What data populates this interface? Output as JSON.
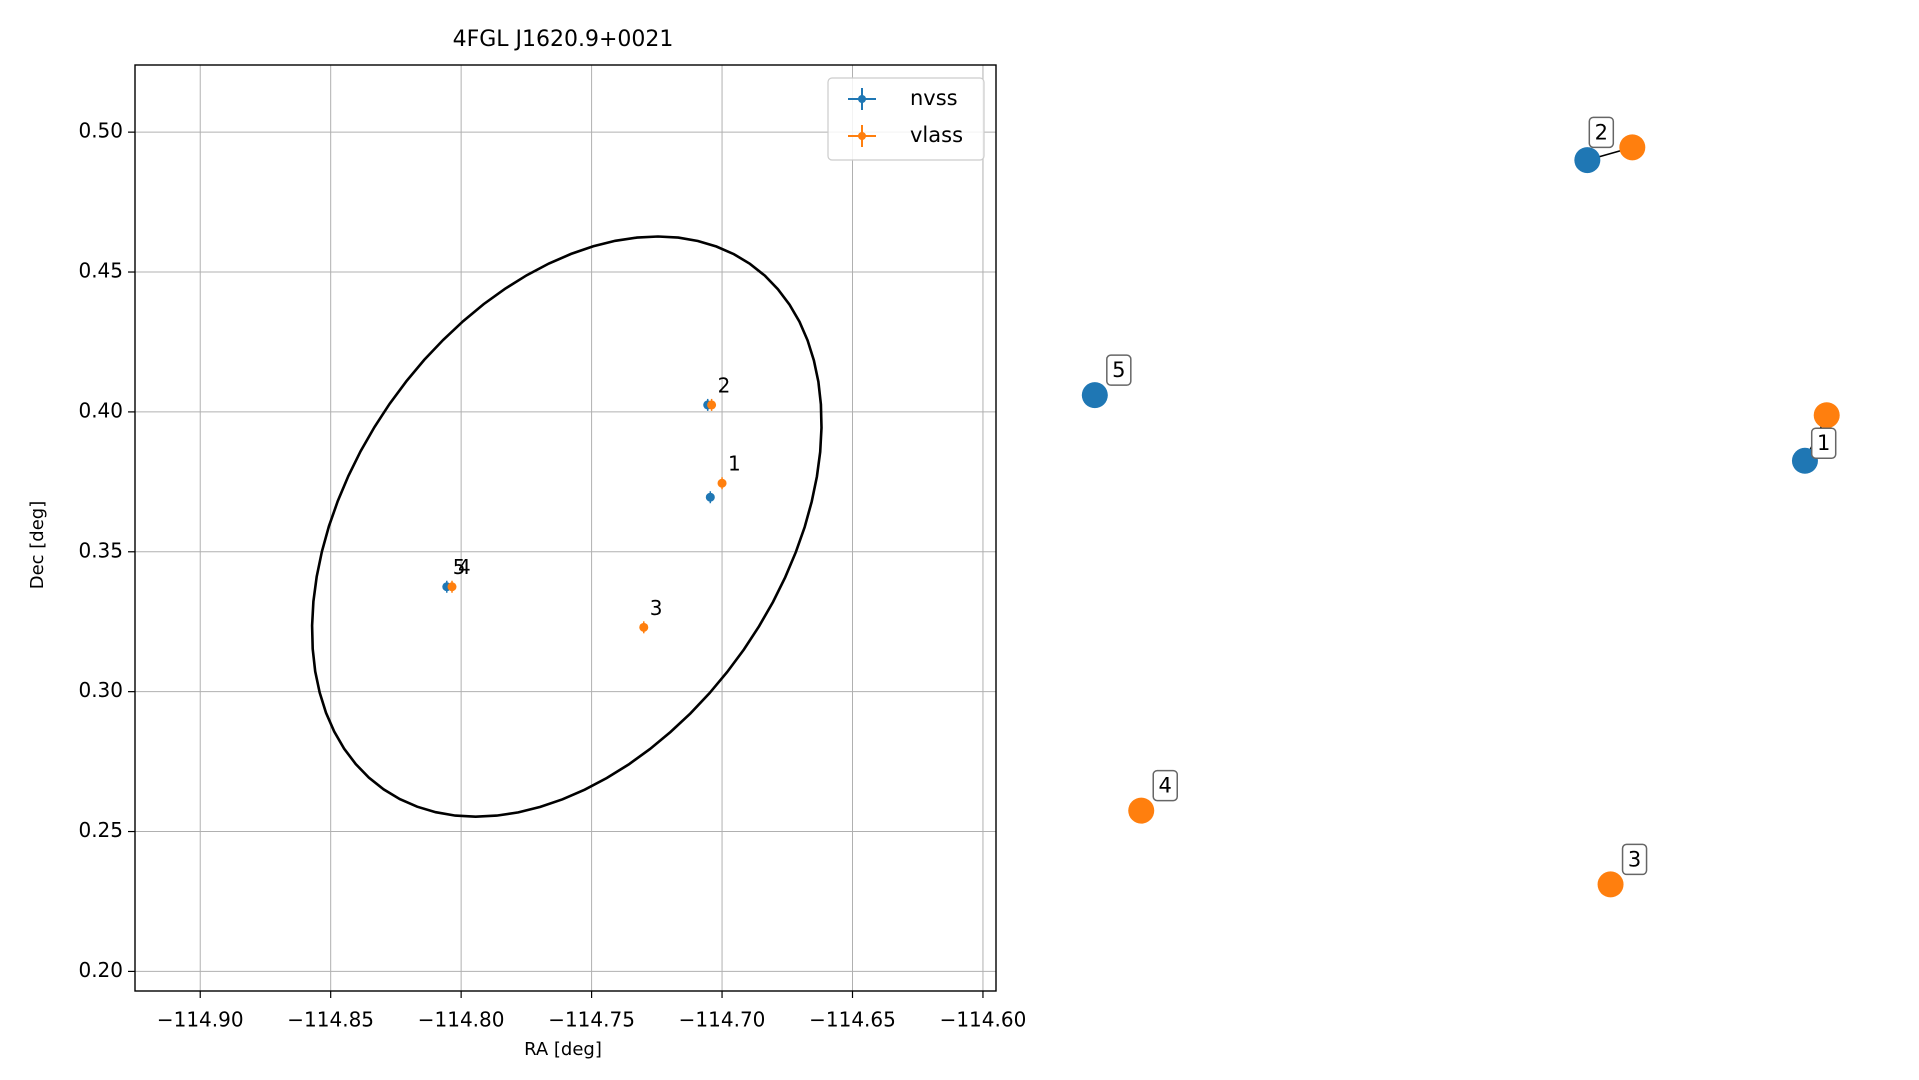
{
  "chart_data": [
    {
      "type": "scatter",
      "title": "4FGL J1620.9+0021",
      "xlabel": "RA [deg]",
      "ylabel": "Dec [deg]",
      "xlim": [
        -114.925,
        -114.595
      ],
      "ylim": [
        0.193,
        0.524
      ],
      "xticks": [
        -114.9,
        -114.85,
        -114.8,
        -114.75,
        -114.7,
        -114.65,
        -114.6
      ],
      "xtick_labels": [
        "−114.90",
        "−114.85",
        "−114.80",
        "−114.75",
        "−114.70",
        "−114.65",
        "−114.60"
      ],
      "yticks": [
        0.2,
        0.25,
        0.3,
        0.35,
        0.4,
        0.45,
        0.5
      ],
      "ytick_labels": [
        "0.20",
        "0.25",
        "0.30",
        "0.35",
        "0.40",
        "0.45",
        "0.50"
      ],
      "grid": true,
      "legend_position": "top-right",
      "series": [
        {
          "name": "nvss",
          "color": "#1f77b4",
          "points": [
            {
              "x": -114.7045,
              "y": 0.3695,
              "label": "1"
            },
            {
              "x": -114.7055,
              "y": 0.4025,
              "label": "2"
            },
            {
              "x": -114.8055,
              "y": 0.3375,
              "label": "5"
            }
          ]
        },
        {
          "name": "vlass",
          "color": "#ff7f0e",
          "points": [
            {
              "x": -114.7,
              "y": 0.3745,
              "label": "1"
            },
            {
              "x": -114.704,
              "y": 0.4025,
              "label": "2"
            },
            {
              "x": -114.73,
              "y": 0.323,
              "label": "3"
            },
            {
              "x": -114.8035,
              "y": 0.3375,
              "label": "4"
            }
          ]
        }
      ],
      "ellipse": {
        "center_x": -114.7595,
        "center_y": 0.359,
        "semi_major": 0.1175,
        "semi_minor": 0.0805,
        "angle_deg": 49.8,
        "color": "#000000"
      }
    },
    {
      "type": "scatter",
      "title": "",
      "xlabel": "",
      "ylabel": "",
      "axes_visible": false,
      "xlim": [
        -114.8072,
        -114.6976
      ],
      "ylim": [
        0.3158,
        0.408
      ],
      "series": [
        {
          "name": "nvss",
          "color": "#1f77b4",
          "points": [
            {
              "x": -114.7045,
              "y": 0.3695,
              "label": "1"
            },
            {
              "x": -114.7345,
              "y": 0.4025,
              "label": "2"
            },
            {
              "x": -114.8024,
              "y": 0.3767,
              "label": "5"
            }
          ]
        },
        {
          "name": "vlass",
          "color": "#ff7f0e",
          "points": [
            {
              "x": -114.7015,
              "y": 0.3745,
              "label": "1"
            },
            {
              "x": -114.7283,
              "y": 0.4039,
              "label": "2"
            },
            {
              "x": -114.7313,
              "y": 0.323,
              "label": "3"
            },
            {
              "x": -114.796,
              "y": 0.3311,
              "label": "4"
            }
          ]
        }
      ],
      "links": [
        {
          "nvss": "1",
          "vlass": "1"
        },
        {
          "nvss": "2",
          "vlass": "2"
        }
      ],
      "annotated_points": [
        {
          "series": "vlass",
          "label": "1"
        },
        {
          "series": "vlass",
          "label": "2"
        },
        {
          "series": "vlass",
          "label": "3"
        },
        {
          "series": "vlass",
          "label": "4"
        },
        {
          "series": "nvss",
          "label": "5"
        }
      ]
    }
  ]
}
